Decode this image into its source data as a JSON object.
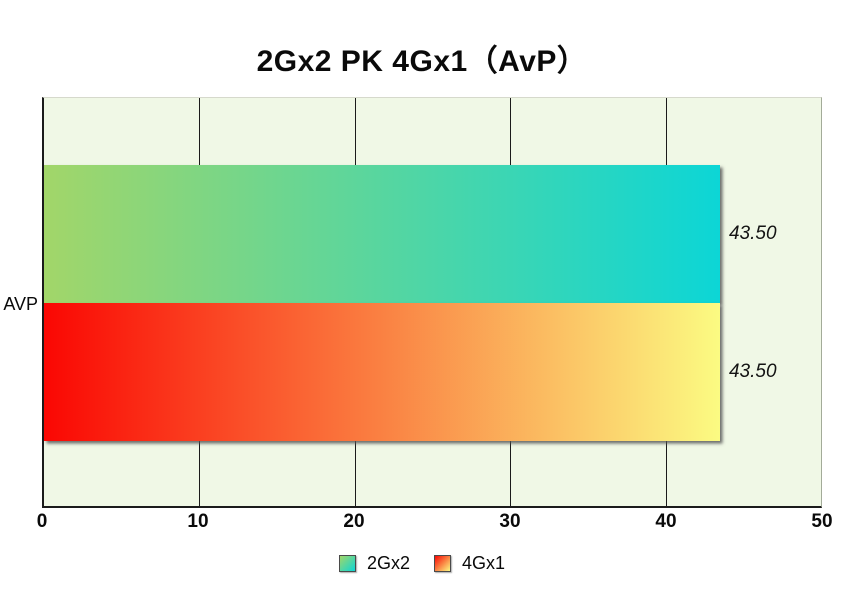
{
  "title": "2Gx2 PK 4Gx1（AvP）",
  "chart_data": {
    "type": "bar",
    "orientation": "horizontal",
    "title": "2Gx2 PK 4Gx1（AvP）",
    "categories": [
      "AVP"
    ],
    "series": [
      {
        "name": "2Gx2",
        "values": [
          43.5
        ],
        "gradient": [
          "#a2d669",
          "#0cd6d6"
        ]
      },
      {
        "name": "4Gx1",
        "values": [
          43.5
        ],
        "gradient": [
          "#fa0703",
          "#fbfb82"
        ]
      }
    ],
    "value_labels": [
      "43.50",
      "43.50"
    ],
    "xlabel": "",
    "ylabel": "",
    "xlim": [
      0,
      50
    ],
    "xticks": [
      0,
      10,
      20,
      30,
      40,
      50
    ],
    "grid": true,
    "legend_position": "bottom",
    "plot_bg_color": "#f0f8e6",
    "page_bg_color": "#ffffff"
  },
  "axis": {
    "category_label": "AVP",
    "tick_labels": [
      "0",
      "10",
      "20",
      "30",
      "40",
      "50"
    ]
  },
  "legend": {
    "items": [
      {
        "label": "2Gx2"
      },
      {
        "label": "4Gx1"
      }
    ]
  }
}
